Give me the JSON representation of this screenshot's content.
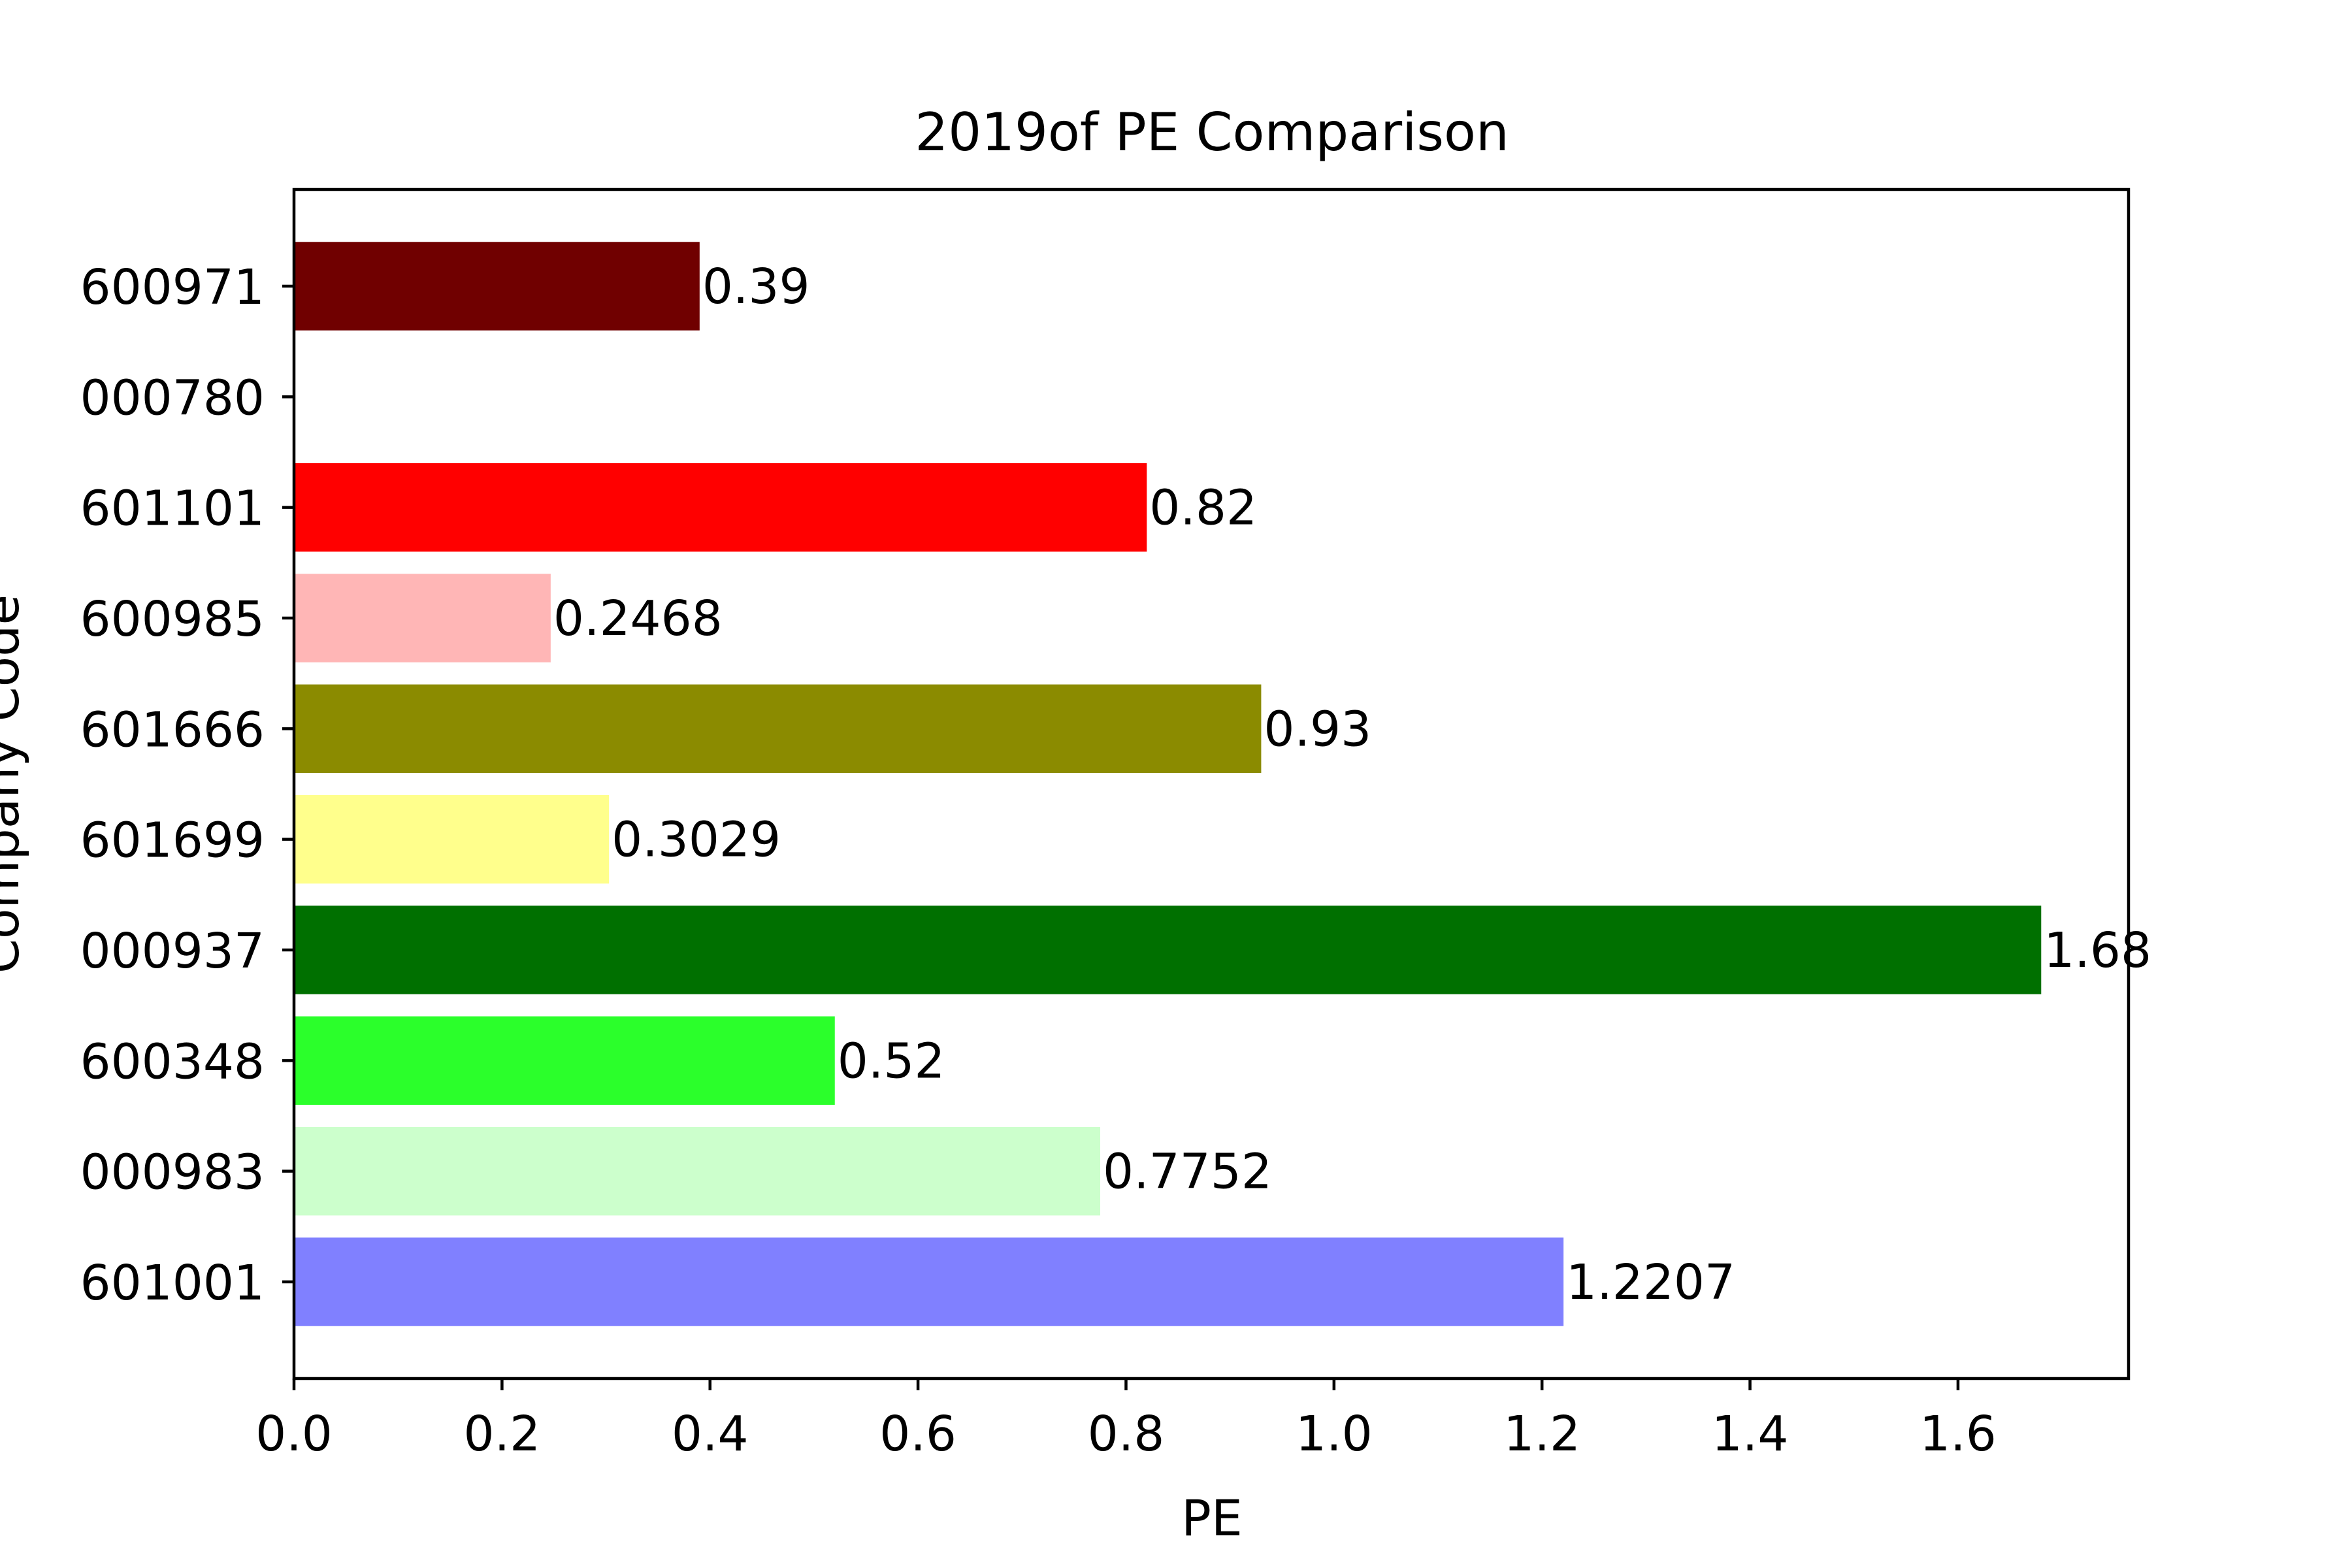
{
  "chart_data": {
    "type": "bar",
    "orientation": "horizontal",
    "title": "2019of PE Comparison",
    "xlabel": "PE",
    "ylabel": "Company Code",
    "xlim": [
      0,
      1.764
    ],
    "xticks": [
      "0.0",
      "0.2",
      "0.4",
      "0.6",
      "0.8",
      "1.0",
      "1.2",
      "1.4",
      "1.6"
    ],
    "categories": [
      "601001",
      "000983",
      "600348",
      "000937",
      "601699",
      "601666",
      "600985",
      "601101",
      "000780",
      "600971"
    ],
    "values": [
      1.2207,
      0.7752,
      0.52,
      1.68,
      0.3029,
      0.93,
      0.2468,
      0.82,
      null,
      0.39
    ],
    "value_labels": [
      "1.2207",
      "0.7752",
      "0.52",
      "1.68",
      "0.3029",
      "0.93",
      "0.2468",
      "0.82",
      "",
      "0.39"
    ],
    "colors": [
      "#8080ff",
      "#ccffcc",
      "#2bff2b",
      "#007000",
      "#ffff8c",
      "#8b8b00",
      "#ffb6b6",
      "#ff0000",
      "#ffffff",
      "#700000"
    ],
    "grid": false,
    "legend": "none"
  }
}
